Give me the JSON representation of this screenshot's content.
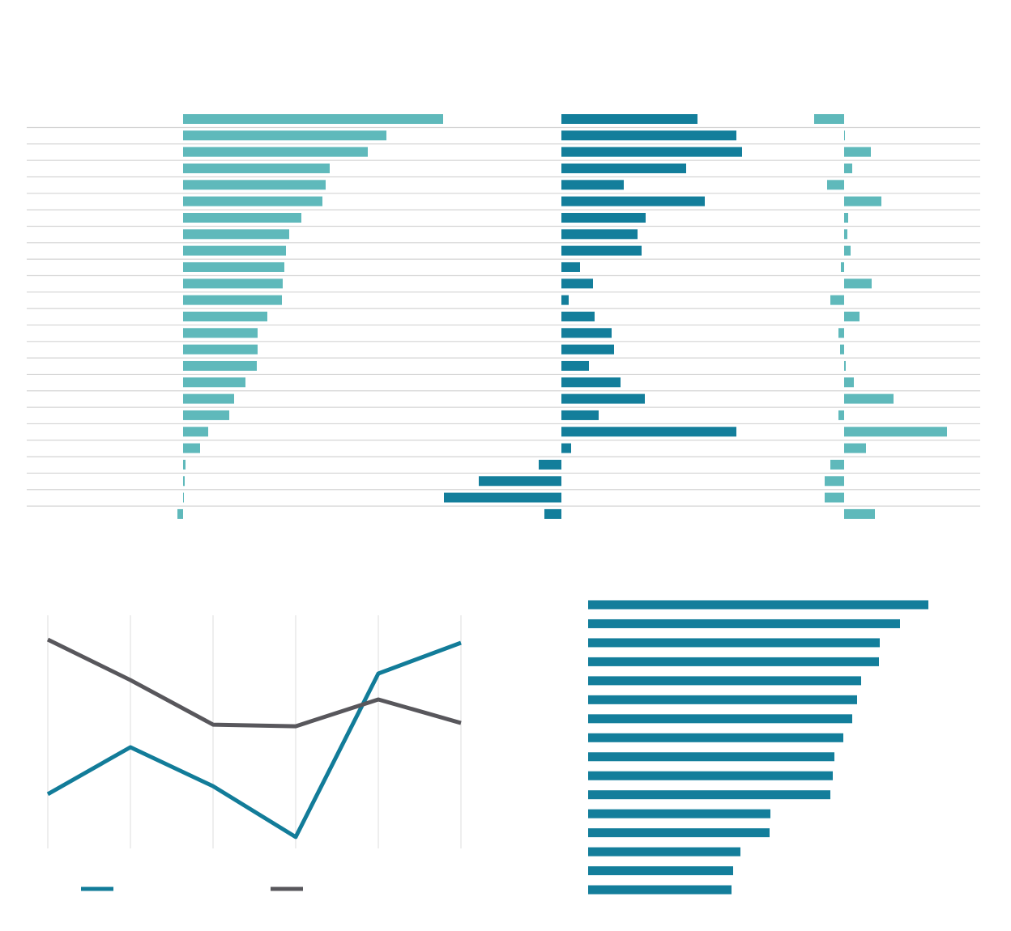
{
  "chart_data": [
    {
      "type": "bar",
      "orientation": "horizontal",
      "color": "#5fb9bb",
      "categories": [
        null,
        null,
        null,
        null,
        null,
        null,
        null,
        null,
        null,
        null,
        null,
        null,
        null,
        null,
        null,
        null,
        null,
        null,
        null,
        null,
        null,
        null,
        null,
        null,
        null
      ],
      "values": [
        32.1,
        25.1,
        22.8,
        18.1,
        17.6,
        17.2,
        14.6,
        13.1,
        12.7,
        12.5,
        12.3,
        12.2,
        10.4,
        9.2,
        9.2,
        9.1,
        7.7,
        6.3,
        5.7,
        3.1,
        2.1,
        0.3,
        0.2,
        0.1,
        -0.7
      ],
      "xlim": [
        -1,
        45
      ]
    },
    {
      "type": "bar",
      "orientation": "horizontal",
      "color": "#137e9b",
      "categories": [
        null,
        null,
        null,
        null,
        null,
        null,
        null,
        null,
        null,
        null,
        null,
        null,
        null,
        null,
        null,
        null,
        null,
        null,
        null,
        null,
        null,
        null,
        null,
        null,
        null
      ],
      "values": [
        16.8,
        21.6,
        22.3,
        15.4,
        7.7,
        17.7,
        10.4,
        9.4,
        9.9,
        2.3,
        3.9,
        0.9,
        4.1,
        6.2,
        6.5,
        3.4,
        7.3,
        10.3,
        4.6,
        21.6,
        1.2,
        -2.8,
        -10.2,
        -14.5,
        -2.1
      ],
      "xlim": [
        -15,
        25
      ]
    },
    {
      "type": "bar",
      "orientation": "horizontal",
      "color": "#5fb9bb",
      "categories": [
        null,
        null,
        null,
        null,
        null,
        null,
        null,
        null,
        null,
        null,
        null,
        null,
        null,
        null,
        null,
        null,
        null,
        null,
        null,
        null,
        null,
        null,
        null,
        null,
        null
      ],
      "values": [
        -3.7,
        0.1,
        3.3,
        1.0,
        -2.1,
        4.6,
        0.5,
        0.4,
        0.8,
        -0.4,
        3.4,
        -1.7,
        1.9,
        -0.7,
        -0.5,
        0.2,
        1.2,
        6.1,
        -0.7,
        12.7,
        2.7,
        -1.7,
        -2.4,
        -2.4,
        3.8
      ],
      "xlim": [
        -5,
        15
      ]
    },
    {
      "type": "line",
      "categories": [
        null,
        null,
        null,
        null,
        null,
        null
      ],
      "grid": true,
      "series": [
        {
          "color": "#127c99",
          "values": [
            23.3,
            43.4,
            26.7,
            4.9,
            75.0,
            88.2
          ]
        },
        {
          "color": "#58575c",
          "values": [
            89.6,
            72.2,
            53.1,
            52.4,
            63.9,
            53.8
          ]
        }
      ],
      "ylim": [
        0,
        100
      ]
    },
    {
      "type": "bar",
      "orientation": "horizontal",
      "color": "#137e9b",
      "categories": [
        null,
        null,
        null,
        null,
        null,
        null,
        null,
        null,
        null,
        null,
        null,
        null,
        null,
        null,
        null,
        null
      ],
      "values": [
        42.0,
        38.5,
        36.0,
        35.9,
        33.7,
        33.2,
        32.6,
        31.5,
        30.4,
        30.2,
        29.9,
        22.5,
        22.4,
        18.8,
        17.9,
        17.7
      ],
      "xlim": [
        0,
        48
      ]
    }
  ]
}
